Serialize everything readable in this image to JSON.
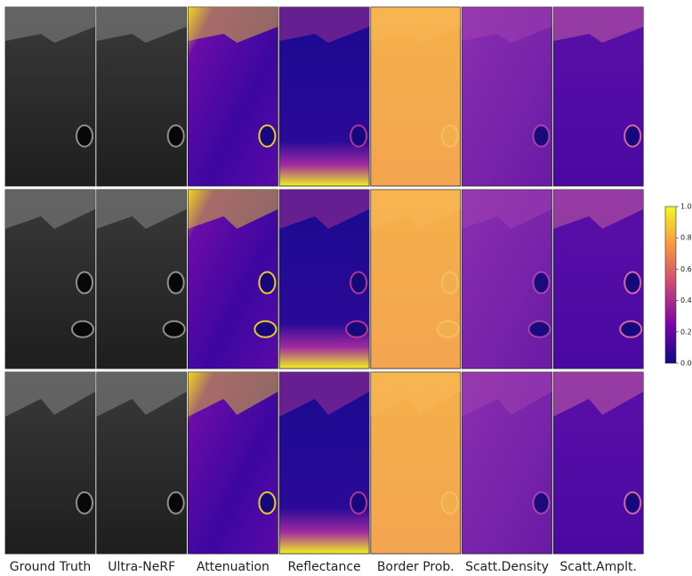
{
  "figure": {
    "columns": [
      "Ground Truth",
      "Ultra-NeRF",
      "Attenuation",
      "Reflectance",
      "Border Prob.",
      "Scatt.Density",
      "Scatt.Amplt."
    ],
    "colorbar": {
      "range": [
        0,
        1
      ],
      "ticks": [
        {
          "value": 0,
          "label": "0.0"
        },
        {
          "value": 0.2,
          "label": "0.2"
        },
        {
          "value": 0.4,
          "label": "0.4"
        },
        {
          "value": 0.6,
          "label": "0.6"
        },
        {
          "value": 0.8,
          "label": "0.8"
        },
        {
          "value": 1,
          "label": "1.0"
        }
      ]
    }
  }
}
